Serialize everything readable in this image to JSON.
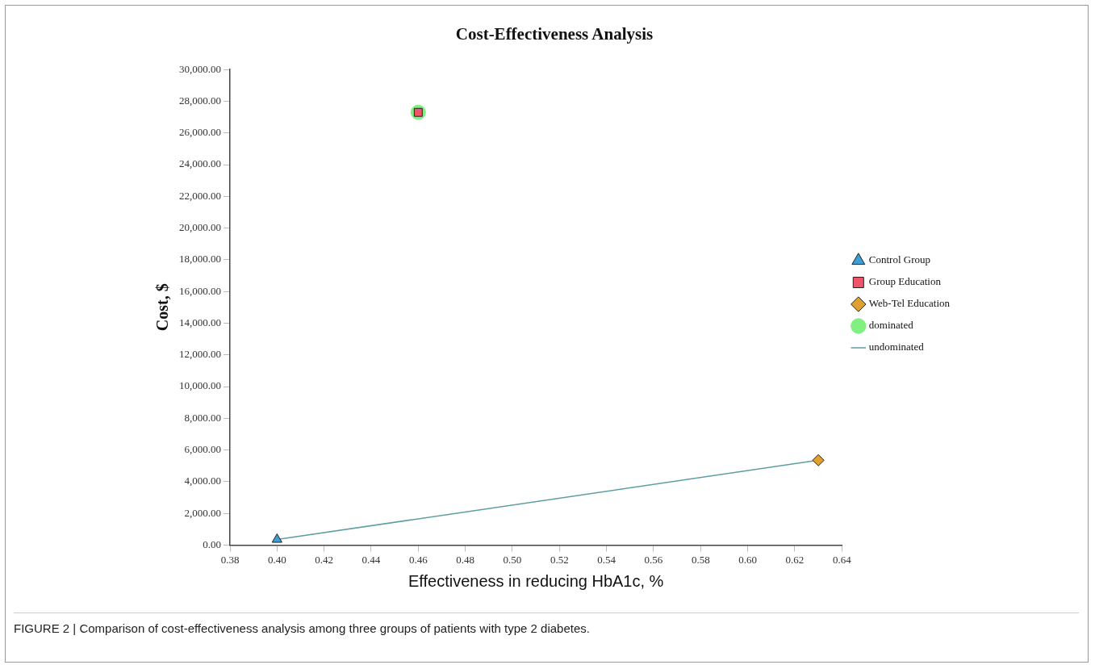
{
  "chart_data": {
    "type": "scatter",
    "title": "Cost-Effectiveness Analysis",
    "xlabel": "Effectiveness in reducing HbA1c, %",
    "ylabel": "Cost, $",
    "series": [
      {
        "name": "Control Group",
        "color": "#3b9fd6",
        "marker": "triangle",
        "x": [
          0.4
        ],
        "values": [
          350
        ]
      },
      {
        "name": "Group Education",
        "color": "#f0546a",
        "marker": "square",
        "x": [
          0.46
        ],
        "values": [
          27300
        ]
      },
      {
        "name": "Web-Tel Education",
        "color": "#e0a030",
        "marker": "diamond",
        "x": [
          0.63
        ],
        "values": [
          5350
        ]
      },
      {
        "name": "dominated",
        "color": "#80f080",
        "marker": "circle",
        "x": [
          0.46
        ],
        "values": [
          27300
        ]
      },
      {
        "name": "undominated",
        "type": "line",
        "color": "#5f9ea0",
        "marker": "none",
        "x": [
          0.4,
          0.63
        ],
        "values": [
          350,
          5350
        ]
      }
    ],
    "xlim": [
      0.38,
      0.64
    ],
    "xticks": [
      0.38,
      {
        "value": 0.4,
        "label": "0.40"
      },
      0.42,
      0.44,
      0.46,
      0.48,
      {
        "value": 0.5,
        "label": "0.50"
      },
      0.52,
      0.54,
      0.56,
      0.58,
      {
        "value": 0.6,
        "label": "0.60"
      },
      0.62,
      0.64
    ],
    "ylim": [
      0,
      30000
    ],
    "yticks": [
      {
        "value": 0,
        "label": "0.00"
      },
      {
        "value": 2000,
        "label": "2,000.00"
      },
      {
        "value": 4000,
        "label": "4,000.00"
      },
      {
        "value": 6000,
        "label": "6,000.00"
      },
      {
        "value": 8000,
        "label": "8,000.00"
      },
      {
        "value": 10000,
        "label": "10,000.00"
      },
      {
        "value": 12000,
        "label": "12,000.00"
      },
      {
        "value": 14000,
        "label": "14,000.00"
      },
      {
        "value": 16000,
        "label": "16,000.00"
      },
      {
        "value": 18000,
        "label": "18,000.00"
      },
      {
        "value": 20000,
        "label": "20,000.00"
      },
      {
        "value": 22000,
        "label": "22,000.00"
      },
      {
        "value": 24000,
        "label": "24,000.00"
      },
      {
        "value": 26000,
        "label": "26,000.00"
      },
      {
        "value": 28000,
        "label": "28,000.00"
      },
      {
        "value": 30000,
        "label": "30,000.00"
      }
    ],
    "grid": false,
    "legend": "right",
    "annotations": [
      "FIGURE 2 | Comparison of cost-effectiveness analysis among three groups of patients with type 2 diabetes."
    ]
  }
}
